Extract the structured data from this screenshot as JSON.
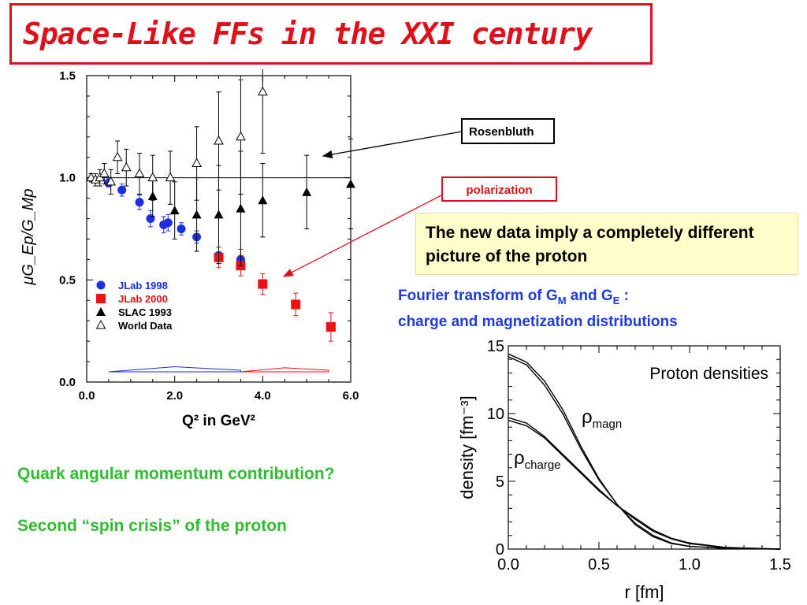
{
  "title": "Space-Like FFs in the XXI century",
  "callouts": {
    "rosenbluth": "Rosenbluth",
    "polarization": "polarization"
  },
  "statement": "The new data imply a completely different picture of the proton",
  "fourier": {
    "line1_prefix": "Fourier transform of G",
    "sub_m": "M",
    "line1_mid": " and G",
    "sub_e": "E",
    "line1_suffix": " :",
    "line2": "charge and magnetization distributions"
  },
  "bullets": [
    "Quark angular momentum contribution?",
    "Second “spin crisis” of the proton"
  ],
  "colors": {
    "title_red": "#e0101a",
    "blue_text": "#1f3be0",
    "green_text": "#2ebd2e",
    "jlab1998": "#1a2ee6",
    "jlab2000": "#ee1111",
    "yellow_bg": "#ffffcc"
  },
  "chart_data": [
    {
      "type": "scatter",
      "ylabel": "μG_Ep/G_Mp",
      "xlabel": "Q² in GeV²",
      "xlim": [
        0.0,
        6.0
      ],
      "ylim": [
        0.0,
        1.5
      ],
      "x_ticks": [
        "0.0",
        "2.0",
        "4.0",
        "6.0"
      ],
      "y_ticks": [
        "0.0",
        "0.5",
        "1.0",
        "1.5"
      ],
      "reference_line": 1.0,
      "legend_placement": "lower-left",
      "series": [
        {
          "name": "JLab 1998",
          "marker": "filled-circle",
          "color": "#1a2ee6",
          "points": [
            [
              0.5,
              0.975,
              0.02
            ],
            [
              0.8,
              0.94,
              0.03
            ],
            [
              1.2,
              0.88,
              0.035
            ],
            [
              1.45,
              0.8,
              0.04
            ],
            [
              1.75,
              0.77,
              0.04
            ],
            [
              1.85,
              0.78,
              0.04
            ],
            [
              2.15,
              0.75,
              0.03
            ],
            [
              2.5,
              0.71,
              0.03
            ],
            [
              3.0,
              0.62,
              0.04
            ],
            [
              3.5,
              0.6,
              0.05
            ]
          ]
        },
        {
          "name": "JLab 2000",
          "marker": "filled-square",
          "color": "#ee1111",
          "points": [
            [
              3.0,
              0.61,
              0.05
            ],
            [
              3.5,
              0.57,
              0.05
            ],
            [
              4.0,
              0.48,
              0.05
            ],
            [
              4.75,
              0.38,
              0.055
            ],
            [
              5.55,
              0.27,
              0.07
            ]
          ]
        },
        {
          "name": "SLAC 1993",
          "marker": "filled-triangle",
          "color": "#000000",
          "points": [
            [
              1.5,
              0.91,
              0.1
            ],
            [
              2.0,
              0.84,
              0.14
            ],
            [
              2.5,
              0.82,
              0.18
            ],
            [
              3.0,
              0.82,
              0.24
            ],
            [
              3.5,
              0.85,
              0.28
            ],
            [
              4.0,
              0.89,
              0.18
            ],
            [
              5.0,
              0.93,
              0.18
            ],
            [
              6.0,
              0.97,
              0.22
            ]
          ]
        },
        {
          "name": "World Data",
          "marker": "open-triangle",
          "color": "#000000",
          "points": [
            [
              0.1,
              1.0,
              0.02
            ],
            [
              0.2,
              0.99,
              0.03
            ],
            [
              0.3,
              1.0,
              0.04
            ],
            [
              0.4,
              1.02,
              0.05
            ],
            [
              0.55,
              0.98,
              0.06
            ],
            [
              0.7,
              1.1,
              0.08
            ],
            [
              0.9,
              1.05,
              0.09
            ],
            [
              1.2,
              1.02,
              0.1
            ],
            [
              1.5,
              1.0,
              0.11
            ],
            [
              1.9,
              1.0,
              0.13
            ],
            [
              2.5,
              1.07,
              0.18
            ],
            [
              3.0,
              1.18,
              0.24
            ],
            [
              3.5,
              1.2,
              0.28
            ],
            [
              4.0,
              1.42,
              0.3
            ]
          ]
        }
      ],
      "systematic_bands": [
        {
          "color": "#1a2ee6",
          "range": [
            0.5,
            3.5
          ]
        },
        {
          "color": "#ee1111",
          "range": [
            3.5,
            5.5
          ]
        }
      ]
    },
    {
      "type": "line",
      "title": "Proton densities",
      "xlabel": "r [fm]",
      "ylabel": "density [fm⁻³]",
      "xlim": [
        0.0,
        1.5
      ],
      "ylim": [
        0,
        15
      ],
      "x_ticks": [
        "0.0",
        "0.5",
        "1.0",
        "1.5"
      ],
      "y_ticks": [
        "0",
        "5",
        "10",
        "15"
      ],
      "series_labels": {
        "magn": "ρ",
        "magn_sub": "magn",
        "charge": "ρ",
        "charge_sub": "charge"
      },
      "series": [
        {
          "name": "magn",
          "x": [
            0,
            0.1,
            0.2,
            0.3,
            0.4,
            0.5,
            0.6,
            0.7,
            0.8,
            0.9,
            1.0,
            1.2,
            1.5
          ],
          "y": [
            14.4,
            13.8,
            12.4,
            10.3,
            7.6,
            5.2,
            3.3,
            1.8,
            0.9,
            0.4,
            0.2,
            0.05,
            0.0
          ]
        },
        {
          "name": "magn-2",
          "x": [
            0,
            0.1,
            0.2,
            0.3,
            0.4,
            0.5,
            0.6,
            0.7,
            0.8,
            0.9,
            1.0,
            1.2,
            1.5
          ],
          "y": [
            14.2,
            13.6,
            12.1,
            10.0,
            7.4,
            5.1,
            3.3,
            1.9,
            1.0,
            0.45,
            0.2,
            0.05,
            0.0
          ]
        },
        {
          "name": "charge",
          "x": [
            0,
            0.1,
            0.2,
            0.3,
            0.4,
            0.5,
            0.6,
            0.7,
            0.8,
            0.9,
            1.0,
            1.2,
            1.5
          ],
          "y": [
            9.7,
            9.3,
            8.3,
            7.0,
            5.7,
            4.4,
            3.2,
            2.2,
            1.3,
            0.75,
            0.4,
            0.1,
            0.0
          ]
        },
        {
          "name": "charge-2",
          "x": [
            0,
            0.1,
            0.2,
            0.3,
            0.4,
            0.5,
            0.6,
            0.7,
            0.8,
            0.9,
            1.0,
            1.2,
            1.5
          ],
          "y": [
            9.5,
            9.1,
            8.2,
            6.9,
            5.6,
            4.3,
            3.2,
            2.3,
            1.4,
            0.8,
            0.45,
            0.12,
            0.0
          ]
        }
      ]
    }
  ]
}
